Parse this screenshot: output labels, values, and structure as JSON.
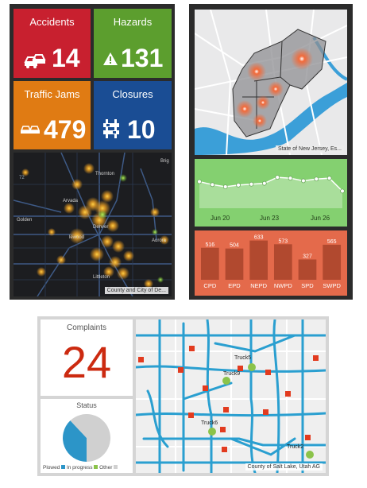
{
  "incidents": {
    "accidents": {
      "label": "Accidents",
      "value": "14",
      "icon": "car-crash-icon",
      "color": "#c8202f"
    },
    "hazards": {
      "label": "Hazards",
      "value": "131",
      "icon": "warning-icon",
      "color": "#5c9e2e"
    },
    "traffic_jams": {
      "label": "Traffic Jams",
      "value": "479",
      "icon": "traffic-jam-icon",
      "color": "#e07b13"
    },
    "closures": {
      "label": "Closures",
      "value": "10",
      "icon": "road-closure-icon",
      "color": "#1a4d94"
    }
  },
  "maps": {
    "denver": {
      "attribution": "County and City of De...",
      "places": {
        "thornton": "Thornton",
        "arvada": "Arvada",
        "golden": "Golden",
        "denver": "Denver",
        "aurora": "Aurora",
        "lakewood": "lewood",
        "littleton": "Littleton",
        "brighton": "Brig",
        "route": "72"
      }
    },
    "new_jersey": {
      "attribution": "State of New Jersey, Es..."
    },
    "salt_lake": {
      "attribution": "County of Salt Lake, Utah AG",
      "trucks": [
        "Truck5",
        "Truck9",
        "Truck6",
        "Truck2"
      ]
    }
  },
  "line_chart": {
    "type": "line",
    "x_ticks": [
      "Jun 20",
      "Jun 23",
      "Jun 26"
    ],
    "values": [
      62,
      55,
      50,
      54,
      56,
      58,
      72,
      70,
      64,
      68,
      70,
      40
    ],
    "color": "#84d070"
  },
  "bar_chart": {
    "type": "bar",
    "categories": [
      "CPD",
      "EPD",
      "NEPD",
      "NWPD",
      "SPD",
      "SWPD"
    ],
    "values": [
      516,
      504,
      633,
      573,
      327,
      565
    ],
    "value_labels": [
      "516",
      "504",
      "633",
      "573",
      "327",
      "565"
    ],
    "ylim": [
      0,
      700
    ],
    "color": "#e46a4b"
  },
  "complaints": {
    "label": "Complaints",
    "value": "24",
    "value_color": "#cc2a10"
  },
  "status": {
    "title": "Status",
    "legend": [
      {
        "label": "Plowed",
        "color": "#2c95c8"
      },
      {
        "label": "In progress",
        "color": "#8bc34a"
      },
      {
        "label": "Other",
        "color": "#d0d0d0"
      }
    ],
    "slices": [
      0.38,
      0.0,
      0.62
    ]
  }
}
